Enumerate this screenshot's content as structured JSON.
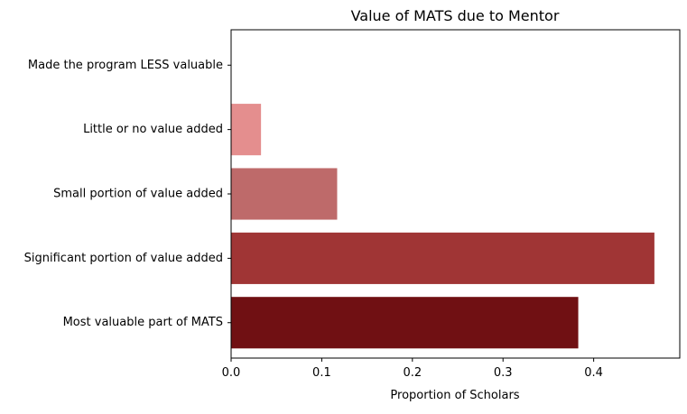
{
  "chart_data": {
    "type": "bar",
    "orientation": "horizontal",
    "title": "Value of MATS due to Mentor",
    "xlabel": "Proportion of Scholars",
    "ylabel": "",
    "categories": [
      "Made the program LESS valuable",
      "Little or no value added",
      "Small portion of value added",
      "Significant portion of value added",
      "Most valuable part of MATS"
    ],
    "values": [
      0.0,
      0.033,
      0.117,
      0.467,
      0.383
    ],
    "colors": [
      "#f2c6c6",
      "#e48e8e",
      "#be6a6a",
      "#a03535",
      "#701013"
    ],
    "xlim": [
      0,
      0.495
    ],
    "xticks": [
      0.0,
      0.1,
      0.2,
      0.3,
      0.4
    ],
    "xtick_labels": [
      "0.0",
      "0.1",
      "0.2",
      "0.3",
      "0.4"
    ],
    "grid": false,
    "legend": "none"
  }
}
